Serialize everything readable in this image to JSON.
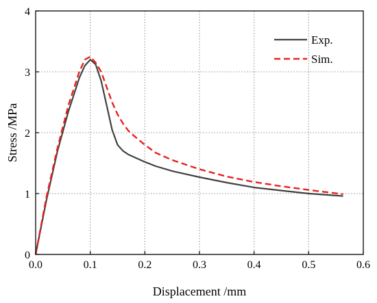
{
  "chart_data": {
    "type": "line",
    "title": "",
    "xlabel": "Displacement /mm",
    "ylabel": "Stress /MPa",
    "xlim": [
      0.0,
      0.6
    ],
    "ylim": [
      0,
      4
    ],
    "xticks": [
      "0.0",
      "0.1",
      "0.2",
      "0.3",
      "0.4",
      "0.5",
      "0.6"
    ],
    "yticks": [
      "0",
      "1",
      "2",
      "3",
      "4"
    ],
    "grid": true,
    "legend_position": "top-right",
    "series": [
      {
        "name": "Exp.",
        "color": "#404040",
        "style": "solid",
        "x": [
          0.0,
          0.02,
          0.04,
          0.06,
          0.08,
          0.09,
          0.1,
          0.11,
          0.12,
          0.13,
          0.14,
          0.15,
          0.16,
          0.17,
          0.18,
          0.2,
          0.22,
          0.25,
          0.3,
          0.35,
          0.4,
          0.45,
          0.5,
          0.563
        ],
        "y": [
          0.0,
          0.9,
          1.7,
          2.35,
          2.9,
          3.1,
          3.2,
          3.12,
          2.85,
          2.45,
          2.05,
          1.8,
          1.7,
          1.64,
          1.6,
          1.52,
          1.45,
          1.37,
          1.27,
          1.18,
          1.1,
          1.05,
          1.0,
          0.96
        ]
      },
      {
        "name": "Sim.",
        "color": "#e8201e",
        "style": "dashed",
        "x": [
          0.0,
          0.02,
          0.04,
          0.06,
          0.08,
          0.09,
          0.1,
          0.11,
          0.12,
          0.13,
          0.14,
          0.15,
          0.16,
          0.17,
          0.18,
          0.2,
          0.22,
          0.25,
          0.3,
          0.35,
          0.4,
          0.45,
          0.5,
          0.563
        ],
        "y": [
          0.0,
          0.95,
          1.75,
          2.45,
          3.0,
          3.2,
          3.25,
          3.15,
          3.0,
          2.75,
          2.5,
          2.3,
          2.15,
          2.03,
          1.95,
          1.8,
          1.67,
          1.55,
          1.4,
          1.28,
          1.19,
          1.12,
          1.06,
          0.99
        ]
      }
    ]
  }
}
